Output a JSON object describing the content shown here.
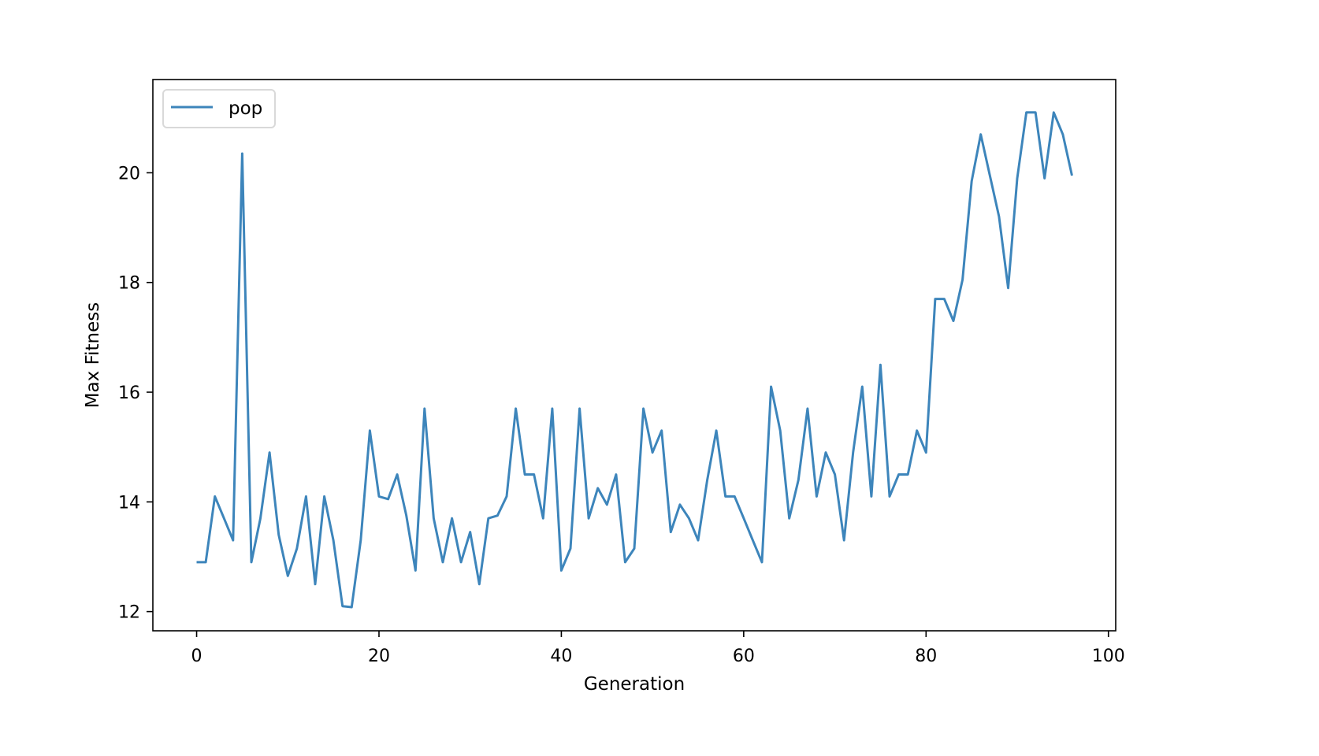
{
  "chart_data": {
    "type": "line",
    "title": "",
    "xlabel": "Generation",
    "ylabel": "Max Fitness",
    "xlim": [
      -4.8,
      100.8
    ],
    "ylim": [
      11.65,
      21.7
    ],
    "xticks": [
      0,
      20,
      40,
      60,
      80,
      100
    ],
    "yticks": [
      12,
      14,
      16,
      18,
      20
    ],
    "grid": false,
    "legend_position": "upper left",
    "series": [
      {
        "name": "pop",
        "color": "#3d85bb",
        "x": [
          0,
          1,
          2,
          3,
          4,
          5,
          6,
          7,
          8,
          9,
          10,
          11,
          12,
          13,
          14,
          15,
          16,
          17,
          18,
          19,
          20,
          21,
          22,
          23,
          24,
          25,
          26,
          27,
          28,
          29,
          30,
          31,
          32,
          33,
          34,
          35,
          36,
          37,
          38,
          39,
          40,
          41,
          42,
          43,
          44,
          45,
          46,
          47,
          48,
          49,
          50,
          51,
          52,
          53,
          54,
          55,
          56,
          57,
          58,
          59,
          60,
          61,
          62,
          63,
          64,
          65,
          66,
          67,
          68,
          69,
          70,
          71,
          72,
          73,
          74,
          75,
          76,
          77,
          78,
          79,
          80,
          81,
          82,
          83,
          84,
          85,
          86,
          87,
          88,
          89,
          90,
          91,
          92,
          93,
          94,
          95,
          96
        ],
        "values": [
          12.9,
          12.9,
          14.1,
          13.7,
          13.3,
          20.35,
          12.9,
          13.7,
          14.9,
          13.4,
          12.65,
          13.15,
          14.1,
          12.5,
          14.1,
          13.3,
          12.1,
          12.08,
          13.3,
          15.3,
          14.1,
          14.05,
          14.5,
          13.75,
          12.75,
          15.7,
          13.7,
          12.9,
          13.7,
          12.9,
          13.45,
          12.5,
          13.7,
          13.75,
          14.1,
          15.7,
          14.5,
          14.5,
          13.7,
          15.7,
          12.75,
          13.15,
          15.7,
          13.7,
          14.25,
          13.95,
          14.5,
          12.9,
          13.15,
          15.7,
          14.9,
          15.3,
          13.45,
          13.95,
          13.7,
          13.3,
          14.4,
          15.3,
          14.1,
          14.1,
          13.7,
          13.3,
          12.9,
          16.1,
          15.3,
          13.7,
          14.4,
          15.7,
          14.1,
          14.9,
          14.5,
          13.3,
          14.9,
          16.1,
          14.1,
          16.5,
          14.1,
          14.5,
          14.5,
          15.3,
          14.9,
          17.7,
          17.7,
          17.3,
          18.05,
          19.85,
          20.7,
          19.95,
          19.2,
          17.9,
          19.9,
          21.1,
          21.1,
          19.9,
          21.1,
          20.7,
          19.95
        ]
      }
    ]
  },
  "legend": {
    "entries": [
      {
        "label": "pop",
        "color": "#3d85bb"
      }
    ]
  },
  "axes": {
    "xlabel": "Generation",
    "ylabel": "Max Fitness",
    "xtick_labels": [
      "0",
      "20",
      "40",
      "60",
      "80",
      "100"
    ],
    "ytick_labels": [
      "12",
      "14",
      "16",
      "18",
      "20"
    ]
  }
}
